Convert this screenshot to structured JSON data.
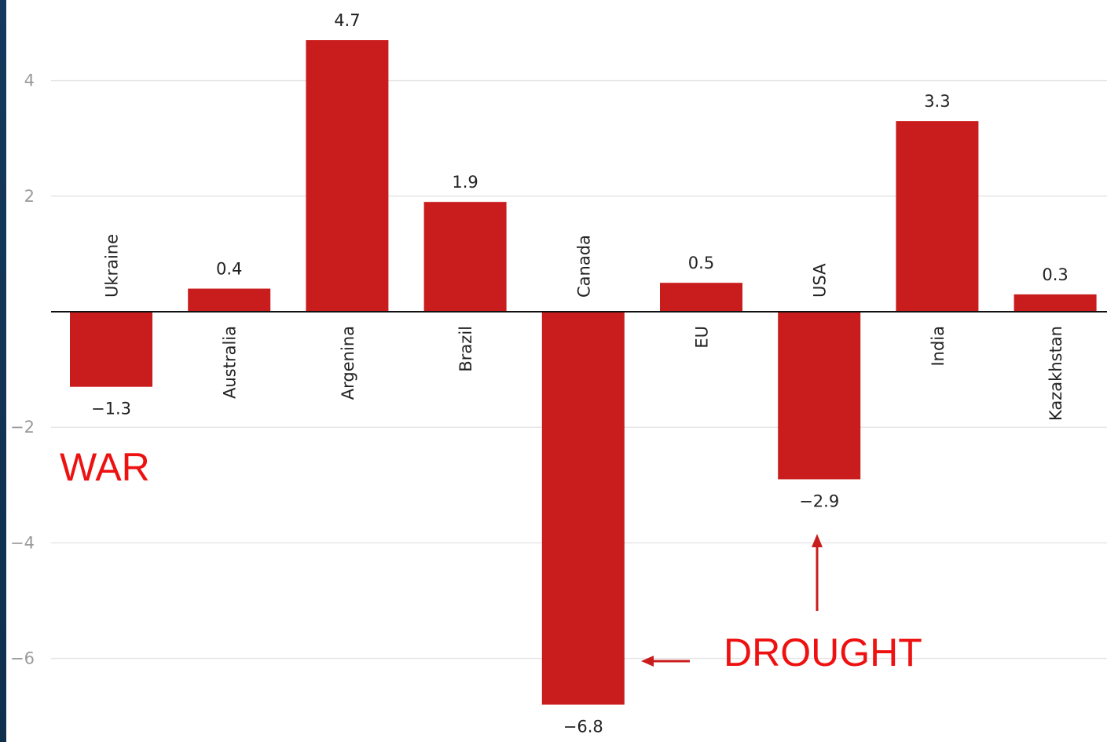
{
  "chart_data": {
    "type": "bar",
    "categories": [
      "Ukraine",
      "Australia",
      "Argenina",
      "Brazil",
      "Canada",
      "EU",
      "USA",
      "India",
      "Kazakhstan"
    ],
    "values": [
      -1.3,
      0.4,
      4.7,
      1.9,
      -6.8,
      0.5,
      -2.9,
      3.3,
      0.3
    ],
    "value_labels": [
      "−1.3",
      "0.4",
      "4.7",
      "1.9",
      "−6.8",
      "0.5",
      "−2.9",
      "3.3",
      "0.3"
    ],
    "yticks": [
      4,
      2,
      -2,
      -4,
      -6
    ],
    "ytick_labels": [
      "4",
      "2",
      "−2",
      "−4",
      "−6"
    ],
    "ylim": [
      -7.3,
      5.3
    ],
    "grid": true,
    "colors": {
      "bar": "#c91d1d",
      "annotation": "#ee1111",
      "grid": "#e6e6e6",
      "axis": "#111111"
    },
    "annotations": [
      {
        "text": "WAR",
        "target": "Ukraine"
      },
      {
        "text": "DROUGHT",
        "target": [
          "Canada",
          "USA"
        ]
      }
    ]
  }
}
